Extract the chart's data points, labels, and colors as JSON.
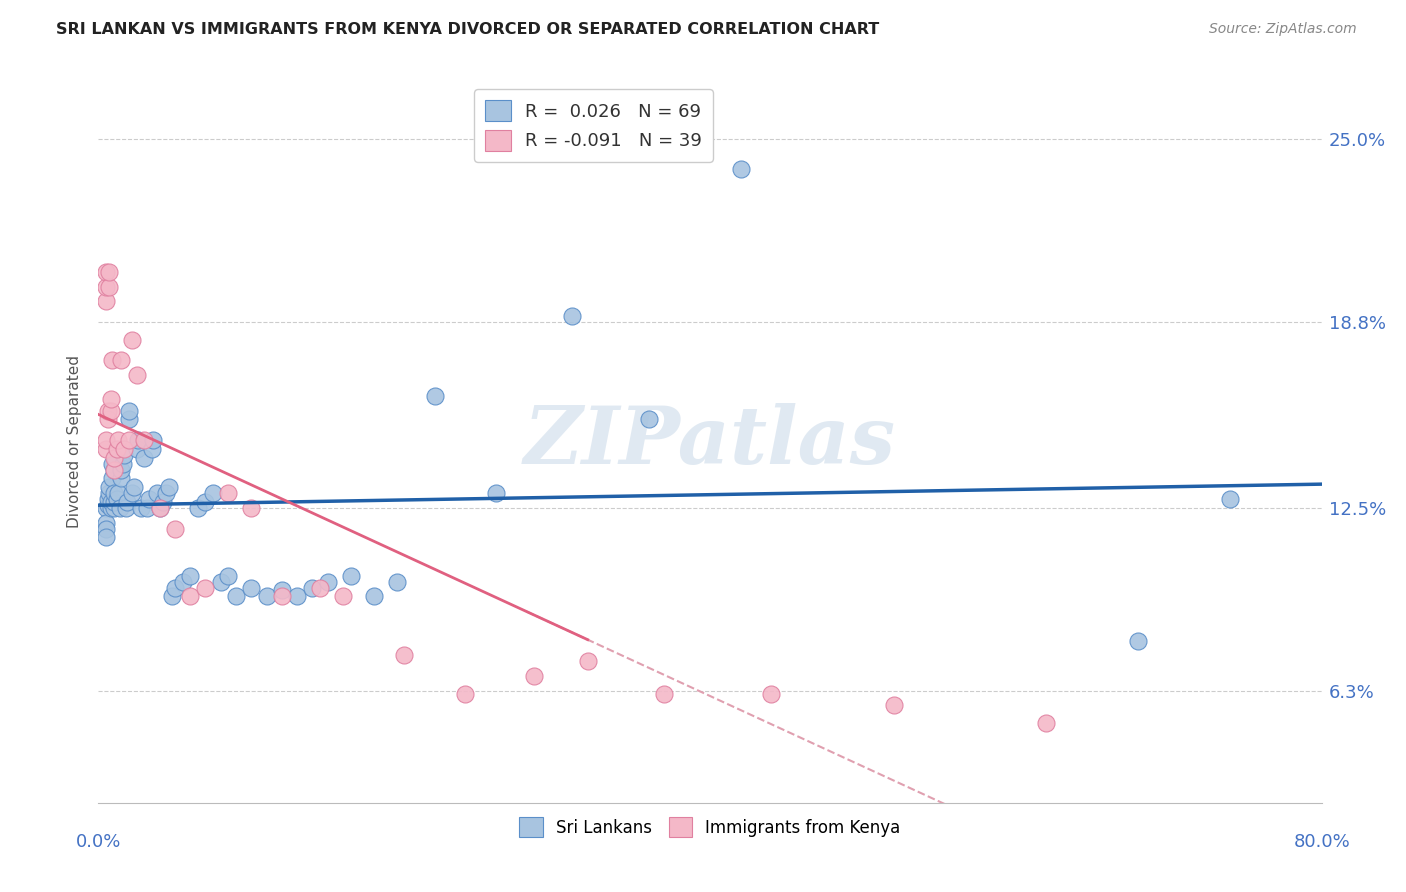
{
  "title": "SRI LANKAN VS IMMIGRANTS FROM KENYA DIVORCED OR SEPARATED CORRELATION CHART",
  "source": "Source: ZipAtlas.com",
  "ylabel": "Divorced or Separated",
  "ytick_labels": [
    "6.3%",
    "12.5%",
    "18.8%",
    "25.0%"
  ],
  "ytick_values": [
    0.063,
    0.125,
    0.188,
    0.25
  ],
  "xmin": 0.0,
  "xmax": 0.8,
  "ymin": 0.025,
  "ymax": 0.27,
  "watermark_text": "ZIPatlas",
  "blue_fill": "#a8c4e0",
  "blue_edge": "#5b8fc9",
  "pink_fill": "#f4b8c8",
  "pink_edge": "#e080a0",
  "line_blue_color": "#2060a8",
  "line_pink_solid": "#e06080",
  "line_pink_dash": "#e0a0b0",
  "sri_lankans_x": [
    0.005,
    0.005,
    0.005,
    0.005,
    0.006,
    0.006,
    0.007,
    0.007,
    0.008,
    0.008,
    0.009,
    0.009,
    0.01,
    0.01,
    0.01,
    0.01,
    0.011,
    0.012,
    0.013,
    0.014,
    0.015,
    0.015,
    0.016,
    0.017,
    0.018,
    0.019,
    0.02,
    0.02,
    0.022,
    0.023,
    0.025,
    0.026,
    0.028,
    0.03,
    0.032,
    0.033,
    0.035,
    0.036,
    0.038,
    0.04,
    0.042,
    0.044,
    0.046,
    0.048,
    0.05,
    0.055,
    0.06,
    0.065,
    0.07,
    0.075,
    0.08,
    0.085,
    0.09,
    0.1,
    0.11,
    0.12,
    0.13,
    0.14,
    0.15,
    0.165,
    0.18,
    0.195,
    0.22,
    0.26,
    0.31,
    0.36,
    0.42,
    0.68,
    0.74
  ],
  "sri_lankans_y": [
    0.125,
    0.12,
    0.118,
    0.115,
    0.126,
    0.128,
    0.13,
    0.132,
    0.125,
    0.127,
    0.135,
    0.14,
    0.125,
    0.127,
    0.13,
    0.138,
    0.142,
    0.128,
    0.13,
    0.125,
    0.135,
    0.138,
    0.14,
    0.143,
    0.125,
    0.127,
    0.155,
    0.158,
    0.13,
    0.132,
    0.145,
    0.148,
    0.125,
    0.142,
    0.125,
    0.128,
    0.145,
    0.148,
    0.13,
    0.125,
    0.127,
    0.13,
    0.132,
    0.095,
    0.098,
    0.1,
    0.102,
    0.125,
    0.127,
    0.13,
    0.1,
    0.102,
    0.095,
    0.098,
    0.095,
    0.097,
    0.095,
    0.098,
    0.1,
    0.102,
    0.095,
    0.1,
    0.163,
    0.13,
    0.19,
    0.155,
    0.24,
    0.08,
    0.128
  ],
  "kenya_x": [
    0.005,
    0.005,
    0.005,
    0.005,
    0.005,
    0.006,
    0.006,
    0.007,
    0.007,
    0.008,
    0.008,
    0.009,
    0.01,
    0.01,
    0.012,
    0.013,
    0.015,
    0.017,
    0.02,
    0.022,
    0.025,
    0.03,
    0.04,
    0.05,
    0.06,
    0.07,
    0.085,
    0.1,
    0.12,
    0.145,
    0.16,
    0.2,
    0.24,
    0.285,
    0.32,
    0.37,
    0.44,
    0.52,
    0.62
  ],
  "kenya_y": [
    0.195,
    0.2,
    0.205,
    0.145,
    0.148,
    0.155,
    0.158,
    0.2,
    0.205,
    0.158,
    0.162,
    0.175,
    0.138,
    0.142,
    0.145,
    0.148,
    0.175,
    0.145,
    0.148,
    0.182,
    0.17,
    0.148,
    0.125,
    0.118,
    0.095,
    0.098,
    0.13,
    0.125,
    0.095,
    0.098,
    0.095,
    0.075,
    0.062,
    0.068,
    0.073,
    0.062,
    0.062,
    0.058,
    0.052
  ]
}
